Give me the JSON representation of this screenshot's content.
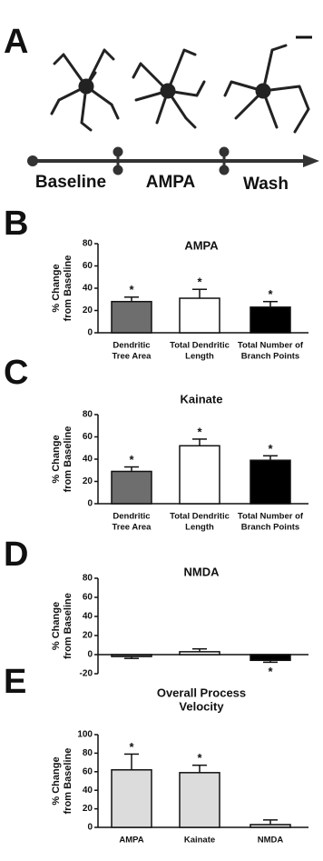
{
  "panel_a": {
    "panel_label": "A",
    "timeline_labels": [
      "Baseline",
      "AMPA",
      "Wash"
    ]
  },
  "chart_data": [
    {
      "type": "bar",
      "panel_label": "B",
      "title": [
        "AMPA"
      ],
      "ylabel": [
        "% Change",
        "from Baseline"
      ],
      "categories": [
        [
          "Dendritic",
          "Tree Area"
        ],
        [
          "Total Dendritic",
          "Length"
        ],
        [
          "Total Number of",
          "Branch Points"
        ]
      ],
      "values": [
        28,
        31,
        23
      ],
      "errors": [
        4,
        8,
        5
      ],
      "significance": [
        "*",
        "*",
        "*"
      ],
      "colors": [
        "#6e6e6e",
        "#ffffff",
        "#000000"
      ],
      "ylim": [
        0,
        80
      ],
      "yticks": [
        0,
        20,
        40,
        60,
        80
      ]
    },
    {
      "type": "bar",
      "panel_label": "C",
      "title": [
        "Kainate"
      ],
      "ylabel": [
        "% Change",
        "from Baseline"
      ],
      "categories": [
        [
          "Dendritic",
          "Tree Area"
        ],
        [
          "Total Dendritic",
          "Length"
        ],
        [
          "Total Number of",
          "Branch Points"
        ]
      ],
      "values": [
        29,
        52,
        39
      ],
      "errors": [
        4,
        6,
        4
      ],
      "significance": [
        "*",
        "*",
        "*"
      ],
      "colors": [
        "#6e6e6e",
        "#ffffff",
        "#000000"
      ],
      "ylim": [
        0,
        80
      ],
      "yticks": [
        0,
        20,
        40,
        60,
        80
      ]
    },
    {
      "type": "bar",
      "panel_label": "D",
      "title": [
        "NMDA"
      ],
      "ylabel": [
        "% Change",
        "from Baseline"
      ],
      "categories": [
        null,
        null,
        null
      ],
      "values": [
        -2,
        3,
        -6
      ],
      "errors": [
        2,
        3,
        2
      ],
      "significance": [
        null,
        null,
        "*"
      ],
      "colors": [
        "#6e6e6e",
        "#ffffff",
        "#000000"
      ],
      "ylim": [
        -20,
        80
      ],
      "yticks": [
        -20,
        0,
        20,
        40,
        60,
        80
      ]
    },
    {
      "type": "bar",
      "panel_label": "E",
      "title": [
        "Overall Process",
        "Velocity"
      ],
      "ylabel": [
        "% Change",
        "from Baseline"
      ],
      "categories": [
        [
          "AMPA"
        ],
        [
          "Kainate"
        ],
        [
          "NMDA"
        ]
      ],
      "values": [
        62,
        59,
        3
      ],
      "errors": [
        17,
        8,
        5
      ],
      "significance": [
        "*",
        "*",
        null
      ],
      "colors": [
        "#dcdcdc",
        "#dcdcdc",
        "#dcdcdc"
      ],
      "ylim": [
        0,
        100
      ],
      "yticks": [
        0,
        20,
        40,
        60,
        80,
        100
      ]
    }
  ]
}
